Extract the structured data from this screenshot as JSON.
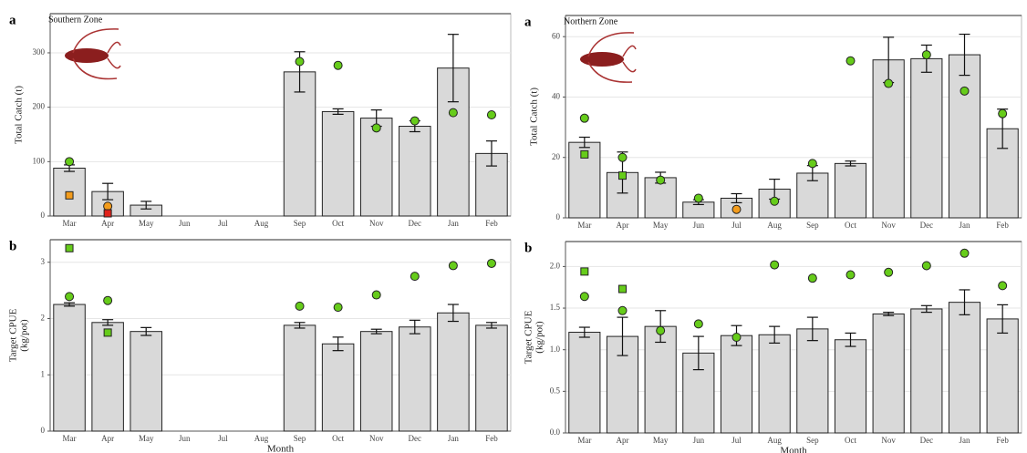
{
  "chart_data": [
    {
      "type": "bar",
      "panel_label": "a",
      "title": "Southern Zone",
      "y_label": [
        "Total Catch (t)"
      ],
      "categories": [
        "Mar",
        "Apr",
        "May",
        "Jun",
        "Jul",
        "Aug",
        "Sep",
        "Oct",
        "Nov",
        "Dec",
        "Jan",
        "Feb"
      ],
      "ylim": [
        0,
        372
      ],
      "yticks": [
        0,
        100,
        200,
        300
      ],
      "grid": true,
      "bars": {
        "color": "#d9d9d9",
        "values": [
          88,
          45,
          20,
          null,
          null,
          null,
          265,
          192,
          180,
          165,
          272,
          115
        ],
        "errors": [
          6,
          15,
          7,
          null,
          null,
          null,
          37,
          5,
          15,
          10,
          62,
          23
        ]
      },
      "points": [
        {
          "shape": "circle",
          "color": "#66cc1a",
          "values": [
            100,
            null,
            null,
            null,
            null,
            null,
            284,
            277,
            162,
            175,
            190,
            186
          ]
        },
        {
          "shape": "square",
          "color": "#f39c1c",
          "values": [
            38,
            null,
            null,
            null,
            null,
            null,
            null,
            null,
            null,
            null,
            null,
            null
          ]
        },
        {
          "shape": "circle",
          "color": "#f39c1c",
          "values": [
            null,
            18,
            null,
            null,
            null,
            null,
            null,
            null,
            null,
            null,
            null,
            null
          ]
        },
        {
          "shape": "square",
          "color": "#e0221a",
          "values": [
            null,
            5,
            null,
            null,
            null,
            null,
            null,
            null,
            null,
            null,
            null,
            null
          ]
        }
      ]
    },
    {
      "type": "bar",
      "panel_label": "b",
      "y_label": [
        "Target CPUE",
        "(kg/pot)"
      ],
      "x_label": "Month",
      "categories": [
        "Mar",
        "Apr",
        "May",
        "Jun",
        "Jul",
        "Aug",
        "Sep",
        "Oct",
        "Nov",
        "Dec",
        "Jan",
        "Feb"
      ],
      "ylim": [
        0,
        3.4
      ],
      "yticks": [
        0,
        1,
        2,
        3
      ],
      "grid": true,
      "bars": {
        "color": "#d9d9d9",
        "values": [
          2.25,
          1.93,
          1.77,
          null,
          null,
          null,
          1.88,
          1.55,
          1.77,
          1.85,
          2.1,
          1.88
        ],
        "errors": [
          0.03,
          0.05,
          0.07,
          null,
          null,
          null,
          0.05,
          0.12,
          0.04,
          0.12,
          0.15,
          0.05
        ]
      },
      "points": [
        {
          "shape": "circle",
          "color": "#66cc1a",
          "values": [
            2.39,
            2.32,
            null,
            null,
            null,
            null,
            2.22,
            2.2,
            2.42,
            2.75,
            2.94,
            2.98
          ]
        },
        {
          "shape": "square",
          "color": "#66cc1a",
          "values": [
            3.25,
            1.75,
            null,
            null,
            null,
            null,
            null,
            null,
            null,
            null,
            null,
            null
          ]
        }
      ]
    },
    {
      "type": "bar",
      "panel_label": "a",
      "title": "Northern Zone",
      "y_label": [
        "Total Catch (t)"
      ],
      "categories": [
        "Mar",
        "Apr",
        "May",
        "Jun",
        "Jul",
        "Aug",
        "Sep",
        "Oct",
        "Nov",
        "Dec",
        "Jan",
        "Feb"
      ],
      "ylim": [
        0,
        67
      ],
      "yticks": [
        0,
        20,
        40,
        60
      ],
      "grid": true,
      "bars": {
        "color": "#d9d9d9",
        "values": [
          25,
          15,
          13.3,
          5.2,
          6.5,
          9.5,
          14.8,
          18,
          52.3,
          52.7,
          54,
          29.5
        ],
        "errors": [
          1.7,
          6.8,
          1.8,
          0.8,
          1.5,
          3.3,
          2.5,
          0.8,
          7.5,
          4.5,
          6.8,
          6.5
        ]
      },
      "points": [
        {
          "shape": "circle",
          "color": "#66cc1a",
          "values": [
            33,
            20,
            12.5,
            6.5,
            null,
            5.5,
            18,
            52,
            44.5,
            54,
            42,
            34.5
          ]
        },
        {
          "shape": "square",
          "color": "#66cc1a",
          "values": [
            21,
            14,
            null,
            null,
            null,
            null,
            null,
            null,
            null,
            null,
            null,
            null
          ]
        },
        {
          "shape": "circle",
          "color": "#f39c1c",
          "values": [
            null,
            null,
            null,
            null,
            2.8,
            null,
            null,
            null,
            null,
            null,
            null,
            null
          ]
        }
      ]
    },
    {
      "type": "bar",
      "panel_label": "b",
      "y_label": [
        "Target CPUE",
        "(kg/pot)"
      ],
      "x_label": "Month",
      "categories": [
        "Mar",
        "Apr",
        "May",
        "Jun",
        "Jul",
        "Aug",
        "Sep",
        "Oct",
        "Nov",
        "Dec",
        "Jan",
        "Feb"
      ],
      "ylim": [
        0,
        2.3
      ],
      "yticks": [
        {
          "value": 0,
          "label": "0.0"
        },
        0.5,
        {
          "value": 1,
          "label": "1.0"
        },
        1.5,
        {
          "value": 2,
          "label": "2.0"
        }
      ],
      "grid": true,
      "bars": {
        "color": "#d9d9d9",
        "values": [
          1.21,
          1.16,
          1.28,
          0.96,
          1.17,
          1.18,
          1.25,
          1.12,
          1.43,
          1.49,
          1.57,
          1.37
        ],
        "errors": [
          0.06,
          0.23,
          0.19,
          0.2,
          0.12,
          0.1,
          0.14,
          0.08,
          0.02,
          0.04,
          0.15,
          0.17
        ]
      },
      "points": [
        {
          "shape": "circle",
          "color": "#66cc1a",
          "values": [
            1.64,
            1.47,
            1.23,
            1.31,
            1.15,
            2.02,
            1.86,
            1.9,
            1.93,
            2.01,
            2.16,
            1.77
          ]
        },
        {
          "shape": "square",
          "color": "#66cc1a",
          "values": [
            1.94,
            1.73,
            null,
            null,
            null,
            null,
            null,
            null,
            null,
            null,
            null,
            null
          ]
        }
      ]
    }
  ]
}
